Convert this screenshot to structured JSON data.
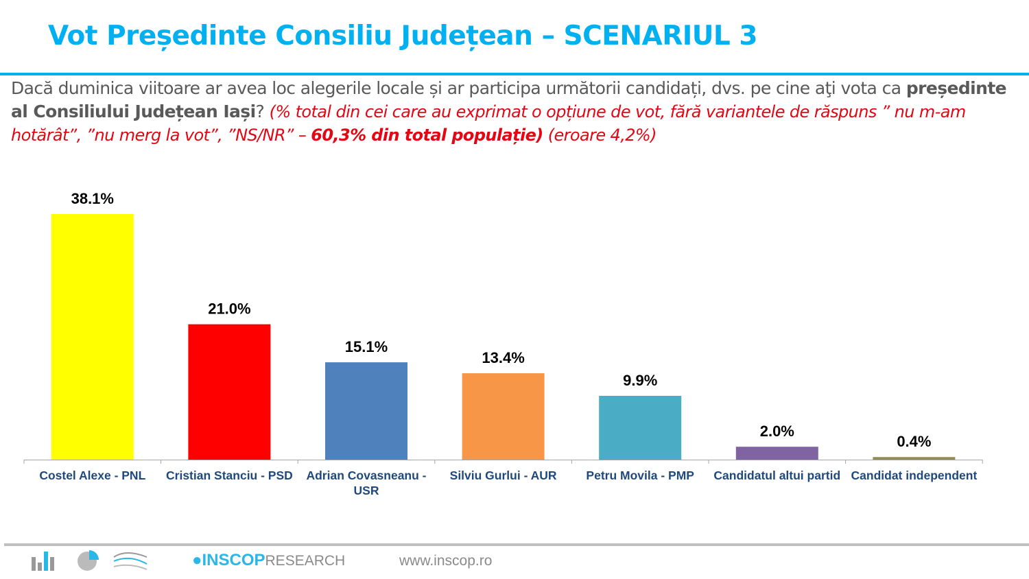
{
  "header": {
    "title": "Vot Președinte Consiliu Județean – SCENARIUL 3"
  },
  "question": {
    "text1": "Dacă duminica viitoare ar avea loc alegerile locale și ar participa următorii candidați, dvs. pe cine aţi vota ca ",
    "bold": "președinte al Consiliului Județean Iași",
    "qmark": "? ",
    "note1": "(% total din cei care au exprimat o opțiune de vot, fără variantele de răspuns ” nu m-am hotărât”, ”nu merg la vot”, ”NS/NR” – ",
    "note_bold": "60,3% din total populație)",
    "note2": " (eroare 4,2%)"
  },
  "chart_data": {
    "type": "bar",
    "title": "",
    "xlabel": "",
    "ylabel": "",
    "ylim": [
      0,
      40
    ],
    "grid": false,
    "categories": [
      "Costel Alexe - PNL",
      "Cristian Stanciu - PSD",
      "Adrian Covasneanu - USR",
      "Silviu Gurlui - AUR",
      "Petru Movila - PMP",
      "Candidatul altui partid",
      "Candidat independent"
    ],
    "values": [
      38.1,
      21.0,
      15.1,
      13.4,
      9.9,
      2.0,
      0.4
    ],
    "labels": [
      "38.1%",
      "21.0%",
      "15.1%",
      "13.4%",
      "9.9%",
      "2.0%",
      "0.4%"
    ],
    "colors": [
      "#FFFF00",
      "#FF0000",
      "#4F81BD",
      "#F79646",
      "#4BACC6",
      "#8064A2",
      "#948A54"
    ]
  },
  "footer": {
    "logo_bold": "INSCOP",
    "logo_thin": "RESEARCH",
    "url": "www.inscop.ro",
    "icons": [
      "bar-chart-icon",
      "pie-chart-icon",
      "wave-icon"
    ]
  }
}
